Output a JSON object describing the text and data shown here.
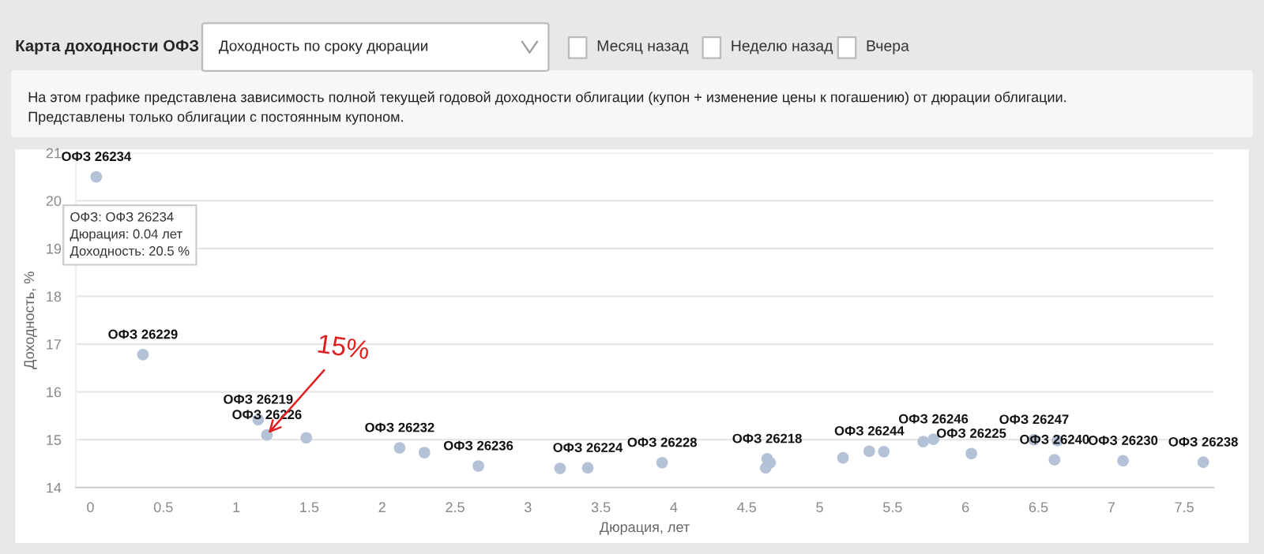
{
  "chart_data": {
    "type": "scatter",
    "title": "Карта доходности ОФЗ",
    "subtitle": "Доходность по сроку дюрации",
    "xlabel": "Дюрация, лет",
    "ylabel": "Доходность, %",
    "x": [
      0.04,
      0.36,
      1.15,
      1.21,
      1.48,
      2.12,
      2.29,
      2.66,
      3.22,
      3.41,
      3.92,
      4.64,
      4.66,
      4.63,
      5.16,
      5.34,
      5.44,
      5.71,
      5.78,
      6.04,
      6.47,
      6.63,
      6.61,
      7.08,
      7.63
    ],
    "series": [
      {
        "color": "#b4c2d8",
        "values": [
          20.5,
          16.78,
          15.42,
          15.1,
          15.04,
          14.83,
          14.73,
          14.45,
          14.4,
          14.41,
          14.52,
          14.6,
          14.52,
          14.41,
          14.62,
          14.76,
          14.75,
          14.96,
          15.01,
          14.71,
          15.0,
          14.98,
          14.58,
          14.56,
          14.53
        ],
        "value_labels": [
          "ОФЗ 26234",
          "ОФЗ 26229",
          "ОФЗ 26219",
          "ОФЗ 26226",
          null,
          "ОФЗ 26232",
          null,
          "ОФЗ 26236",
          null,
          "ОФЗ 26224",
          "ОФЗ 26228",
          "ОФЗ 26218",
          null,
          null,
          null,
          "ОФЗ 26244",
          null,
          null,
          "ОФЗ 26246",
          "ОФЗ 26225",
          "ОФЗ 26247",
          null,
          "ОФЗ 26240",
          "ОФЗ 26230",
          "ОФЗ 26238"
        ]
      }
    ],
    "xlim": [
      -0.1,
      7.7
    ],
    "ylim": [
      14,
      21
    ],
    "xticks": [
      0,
      0.5,
      1,
      1.5,
      2,
      2.5,
      3,
      3.5,
      4,
      4.5,
      5,
      5.5,
      6,
      6.5,
      7,
      7.5
    ],
    "yticks": [
      14,
      15,
      16,
      17,
      18,
      19,
      20,
      21
    ],
    "grid": "y",
    "marker": "circle",
    "legend": false,
    "annotations": [
      "Месяц назад",
      "Неделю назад",
      "Вчера",
      "На этом графике представлена зависимость полной текущей годовой доходности облигации (купон + изменение цены к погашению) от дюрации облигации.\nПредставлены только облигации с постоянным купоном.",
      {
        "text": "ОФЗ: ОФЗ 26234\nДюрация: 0.04 лет\nДоходность: 20.5 %",
        "x": 0.04,
        "y": 20.5
      },
      {
        "text": "15%",
        "x": 1.21,
        "y": 15.1
      }
    ]
  }
}
